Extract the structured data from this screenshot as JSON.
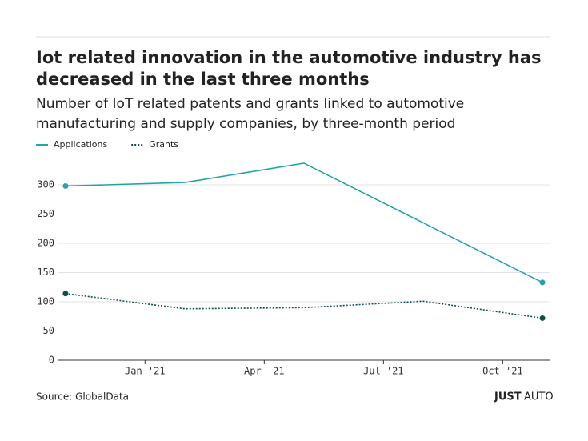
{
  "chart_data": {
    "type": "line",
    "title": [
      "Iot related innovation in the automotive industry has",
      "decreased in the last three months"
    ],
    "subtitle": [
      "Number of IoT related patents and grants linked to automotive",
      "manufacturing and supply companies, by three-month period"
    ],
    "x": [
      -1,
      2,
      5,
      8,
      11
    ],
    "xlim": [
      -1.2,
      11.2
    ],
    "xticks": [
      {
        "value": 1,
        "label": "Jan '21"
      },
      {
        "value": 4,
        "label": "Apr '21"
      },
      {
        "value": 7,
        "label": "Jul '21"
      },
      {
        "value": 10,
        "label": "Oct '21"
      }
    ],
    "ylim": [
      0,
      350
    ],
    "yticks": [
      0,
      50,
      100,
      150,
      200,
      250,
      300
    ],
    "grid": true,
    "series": [
      {
        "name": "Applications",
        "color": "#21a6a6",
        "dash": false,
        "values": [
          298,
          304,
          337,
          235,
          133
        ]
      },
      {
        "name": "Grants",
        "color": "#0d4f4f",
        "dash": true,
        "values": [
          114,
          88,
          90,
          101,
          72
        ]
      }
    ],
    "source": "Source: GlobalData",
    "brand": [
      "JUST",
      "AUTO"
    ]
  }
}
